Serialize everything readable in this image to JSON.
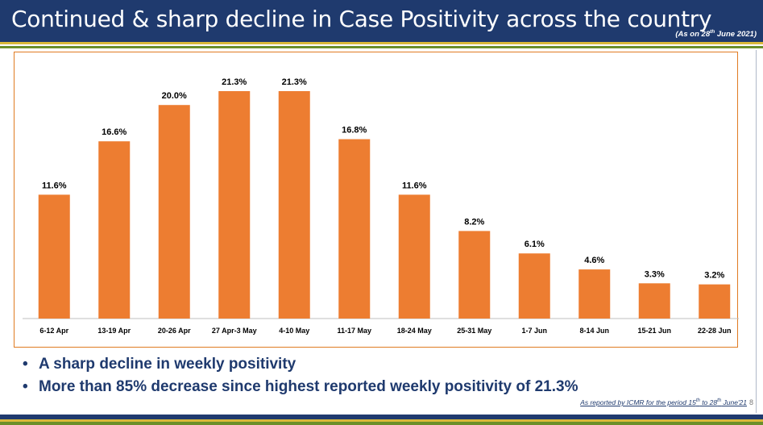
{
  "slide": {
    "title": "Continued & sharp decline in Case Positivity across the country",
    "as_on_prefix": "(As on 28",
    "as_on_sup": "th",
    "as_on_suffix": " June 2021)",
    "page_number": "8"
  },
  "bullets": [
    {
      "text": "A sharp decline in weekly positivity"
    },
    {
      "text": "More than 85% decrease since highest reported weekly positivity of 21.3%"
    }
  ],
  "footnote": {
    "part1": "As reported by ICMR for the period 15",
    "sup1": "th",
    "part2": " to 28",
    "sup2": "th",
    "part3": " June'21"
  },
  "colors": {
    "header_bg": "#1f3a6e",
    "bar": "#ed7d31",
    "frame": "#e07b22",
    "gold": "#d9b93a",
    "green": "#6b8f2a",
    "bullet_text": "#1f3a6e"
  },
  "chart_data": {
    "type": "bar",
    "categories": [
      "6-12 Apr",
      "13-19 Apr",
      "20-26 Apr",
      "27 Apr-3 May",
      "4-10 May",
      "11-17 May",
      "18-24 May",
      "25-31 May",
      "1-7 Jun",
      "8-14 Jun",
      "15-21 Jun",
      "22-28 Jun"
    ],
    "values": [
      11.6,
      16.6,
      20.0,
      21.3,
      21.3,
      16.8,
      11.6,
      8.2,
      6.1,
      4.6,
      3.3,
      3.2
    ],
    "data_labels": [
      "11.6%",
      "16.6%",
      "20.0%",
      "21.3%",
      "21.3%",
      "16.8%",
      "11.6%",
      "8.2%",
      "6.1%",
      "4.6%",
      "3.3%",
      "3.2%"
    ],
    "title": "",
    "xlabel": "",
    "ylabel": "",
    "ylim": [
      0,
      21.3
    ],
    "grid": false,
    "legend": "none"
  }
}
